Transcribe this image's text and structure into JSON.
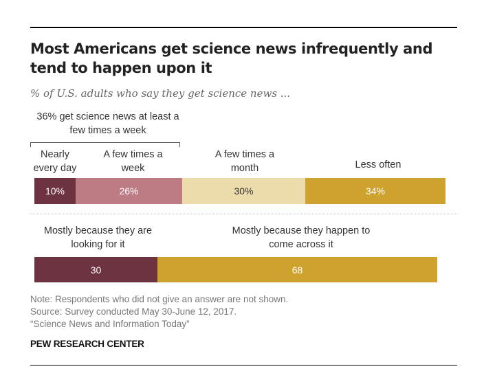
{
  "title": "Most Americans get science news infrequently and tend to happen upon it",
  "subtitle": "% of U.S. adults who say they get science news ...",
  "bracket_label": "36% get science news at least a few times a week",
  "colors": {
    "nearly_every_day": "#6e3340",
    "few_times_week": "#bd7b83",
    "few_times_month": "#ecdcab",
    "less_often": "#cea22e",
    "looking": "#6e3340",
    "come_across": "#cea22e"
  },
  "chart_data": [
    {
      "type": "bar",
      "orientation": "horizontal-stacked",
      "categories": [
        "Nearly every day",
        "A few times a week",
        "A few times a month",
        "Less often"
      ],
      "values": [
        10,
        26,
        30,
        34
      ],
      "value_labels": [
        "10%",
        "26%",
        "30%",
        "34%"
      ]
    },
    {
      "type": "bar",
      "orientation": "horizontal-stacked",
      "categories": [
        "Mostly because they are looking for it",
        "Mostly because they happen to come across it"
      ],
      "values": [
        30,
        68
      ],
      "value_labels": [
        "30",
        "68"
      ]
    }
  ],
  "notes": {
    "note": "Note: Respondents who did not give an answer are not shown.",
    "source": "Source: Survey conducted May 30-June 12, 2017.",
    "report": "“Science News and Information Today”"
  },
  "logo": "PEW RESEARCH CENTER"
}
